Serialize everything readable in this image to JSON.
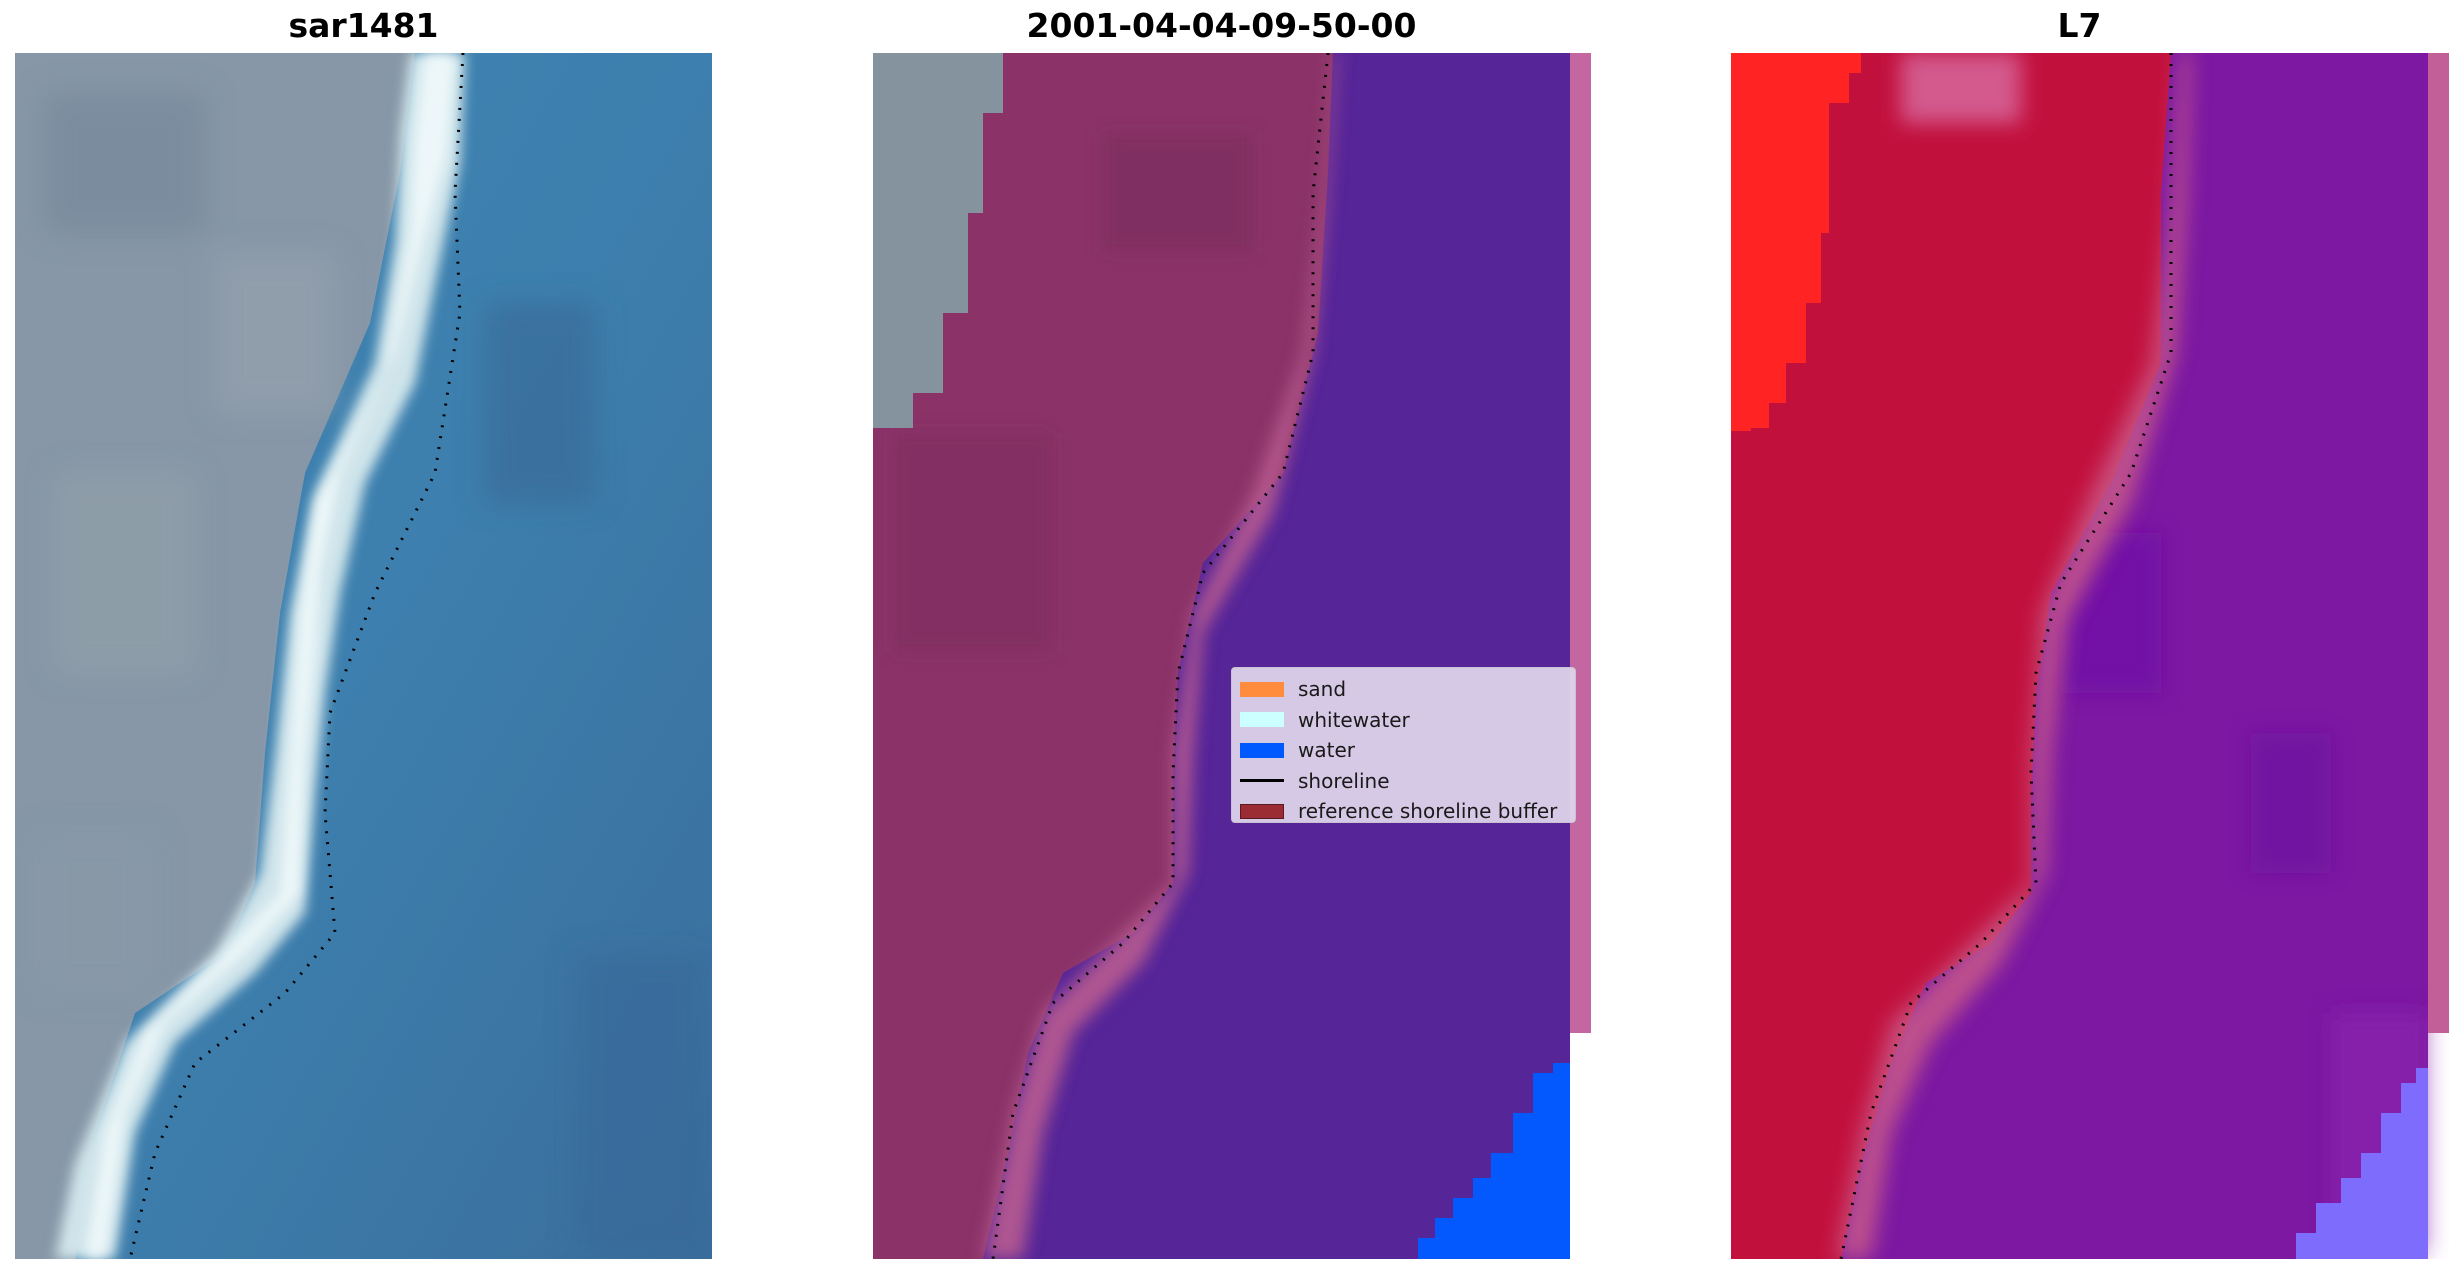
{
  "titles": {
    "left": "sar1481",
    "center": "2001-04-04-09-50-00",
    "right": "L7"
  },
  "panels": {
    "left": {
      "content": "RGB satellite image of coastline with land, white surf band and ocean"
    },
    "center": {
      "content": "classified overlay: land, sand, shoreline buffer and water"
    },
    "right": {
      "content": "false-colour image of coastline"
    }
  },
  "legend": {
    "items": [
      {
        "label": "sand",
        "color": "#ff8c3c",
        "kind": "patch"
      },
      {
        "label": "whitewater",
        "color": "#ccffff",
        "kind": "patch"
      },
      {
        "label": "water",
        "color": "#0058ff",
        "kind": "patch"
      },
      {
        "label": "shoreline",
        "color": "#000000",
        "kind": "line"
      },
      {
        "label": "reference shoreline buffer",
        "color": "#9b2c33",
        "kind": "patch"
      }
    ]
  }
}
